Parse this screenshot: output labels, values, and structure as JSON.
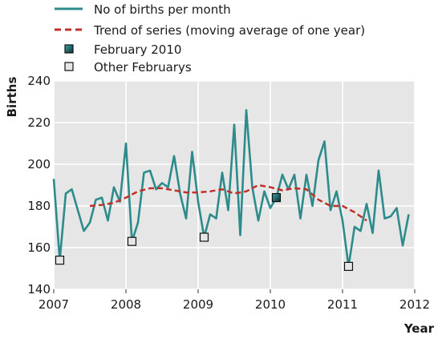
{
  "chart_data": {
    "type": "line",
    "xlabel": "Year",
    "ylabel": "Births",
    "xlim": [
      2007,
      2012
    ],
    "ylim": [
      140,
      240
    ],
    "x_ticks": [
      "2007",
      "2008",
      "2009",
      "2010",
      "2011",
      "2012"
    ],
    "y_ticks": [
      "140",
      "160",
      "180",
      "200",
      "220",
      "240"
    ],
    "grid": true,
    "legend_position": "top-left",
    "series": [
      {
        "name": "No of births per month",
        "style": "solid",
        "color": "#2e8b8b",
        "x": [
          2007.0,
          2007.083,
          2007.167,
          2007.25,
          2007.333,
          2007.417,
          2007.5,
          2007.583,
          2007.667,
          2007.75,
          2007.833,
          2007.917,
          2008.0,
          2008.083,
          2008.167,
          2008.25,
          2008.333,
          2008.417,
          2008.5,
          2008.583,
          2008.667,
          2008.75,
          2008.833,
          2008.917,
          2009.0,
          2009.083,
          2009.167,
          2009.25,
          2009.333,
          2009.417,
          2009.5,
          2009.583,
          2009.667,
          2009.75,
          2009.833,
          2009.917,
          2010.0,
          2010.083,
          2010.167,
          2010.25,
          2010.333,
          2010.417,
          2010.5,
          2010.583,
          2010.667,
          2010.75,
          2010.833,
          2010.917,
          2011.0,
          2011.083,
          2011.167,
          2011.25,
          2011.333,
          2011.417,
          2011.5,
          2011.583,
          2011.667,
          2011.75,
          2011.833,
          2011.917
        ],
        "values": [
          193,
          154,
          186,
          188,
          178,
          168,
          172,
          183,
          184,
          173,
          189,
          182,
          210,
          163,
          172,
          196,
          197,
          188,
          191,
          189,
          204,
          186,
          174,
          206,
          182,
          165,
          176,
          174,
          196,
          178,
          219,
          166,
          226,
          189,
          173,
          187,
          179,
          184,
          195,
          188,
          195,
          174,
          195,
          180,
          202,
          211,
          178,
          187,
          173,
          151,
          170,
          168,
          181,
          167,
          197,
          174,
          175,
          179,
          161,
          176
        ]
      },
      {
        "name": "Trend of series (moving average of one year)",
        "style": "dashed",
        "color": "#c0302a",
        "x": [
          2007.5,
          2007.667,
          2007.833,
          2008.0,
          2008.167,
          2008.333,
          2008.5,
          2008.667,
          2008.833,
          2009.0,
          2009.167,
          2009.333,
          2009.5,
          2009.667,
          2009.833,
          2010.0,
          2010.167,
          2010.333,
          2010.5,
          2010.667,
          2010.833,
          2011.0,
          2011.167,
          2011.333
        ],
        "values": [
          180,
          180.5,
          181.5,
          184,
          187,
          188.5,
          188.5,
          187.5,
          186.5,
          186.5,
          187,
          188,
          186,
          187,
          190,
          189,
          187.5,
          188.5,
          188,
          183,
          180,
          180,
          177,
          173
        ]
      }
    ],
    "markers": [
      {
        "name": "February 2010",
        "color": "#1f4f4f",
        "points": [
          {
            "x": 2010.083,
            "y": 184
          }
        ]
      },
      {
        "name": "Other Februarys",
        "color": "#e6e6e6",
        "points": [
          {
            "x": 2007.083,
            "y": 154
          },
          {
            "x": 2008.083,
            "y": 163
          },
          {
            "x": 2009.083,
            "y": 165
          },
          {
            "x": 2011.083,
            "y": 151
          }
        ]
      }
    ]
  }
}
